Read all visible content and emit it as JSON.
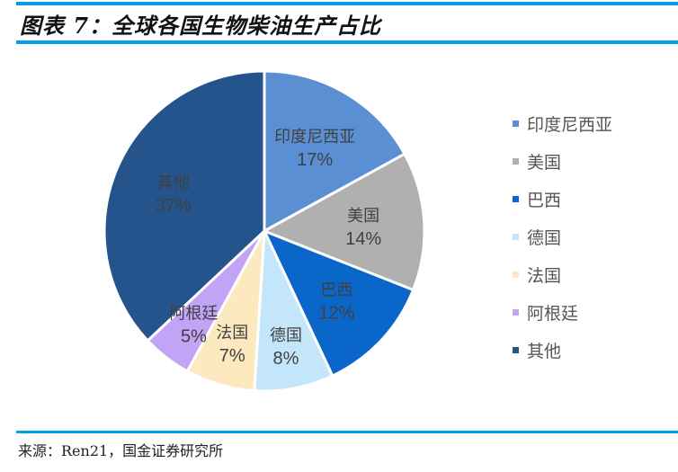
{
  "header": {
    "title": "图表 7：全球各国生物柴油生产占比"
  },
  "footer": {
    "source": "来源：Ren21，国金证券研究所"
  },
  "colors": {
    "rule": "#00a0e9"
  },
  "chart_data": {
    "type": "pie",
    "title": "全球各国生物柴油生产占比",
    "start_angle_deg": 0,
    "direction": "clockwise",
    "legend_position": "right",
    "slices": [
      {
        "label": "印度尼西亚",
        "value": 17,
        "pct": "17%",
        "color": "#5b8fd4"
      },
      {
        "label": "美国",
        "value": 14,
        "pct": "14%",
        "color": "#b0b0b0"
      },
      {
        "label": "巴西",
        "value": 12,
        "pct": "12%",
        "color": "#0a66c8"
      },
      {
        "label": "德国",
        "value": 8,
        "pct": "8%",
        "color": "#c4e6fb"
      },
      {
        "label": "法国",
        "value": 7,
        "pct": "7%",
        "color": "#fde9bf"
      },
      {
        "label": "阿根廷",
        "value": 5,
        "pct": "5%",
        "color": "#c2a3f5"
      },
      {
        "label": "其他",
        "value": 37,
        "pct": "37%",
        "color": "#25538b"
      }
    ]
  },
  "legend": {
    "items": [
      {
        "label": "印度尼西亚",
        "color": "#5b8fd4"
      },
      {
        "label": "美国",
        "color": "#b0b0b0"
      },
      {
        "label": "巴西",
        "color": "#0a66c8"
      },
      {
        "label": "德国",
        "color": "#c4e6fb"
      },
      {
        "label": "法国",
        "color": "#fde9bf"
      },
      {
        "label": "阿根廷",
        "color": "#c2a3f5"
      },
      {
        "label": "其他",
        "color": "#25538b"
      }
    ]
  }
}
